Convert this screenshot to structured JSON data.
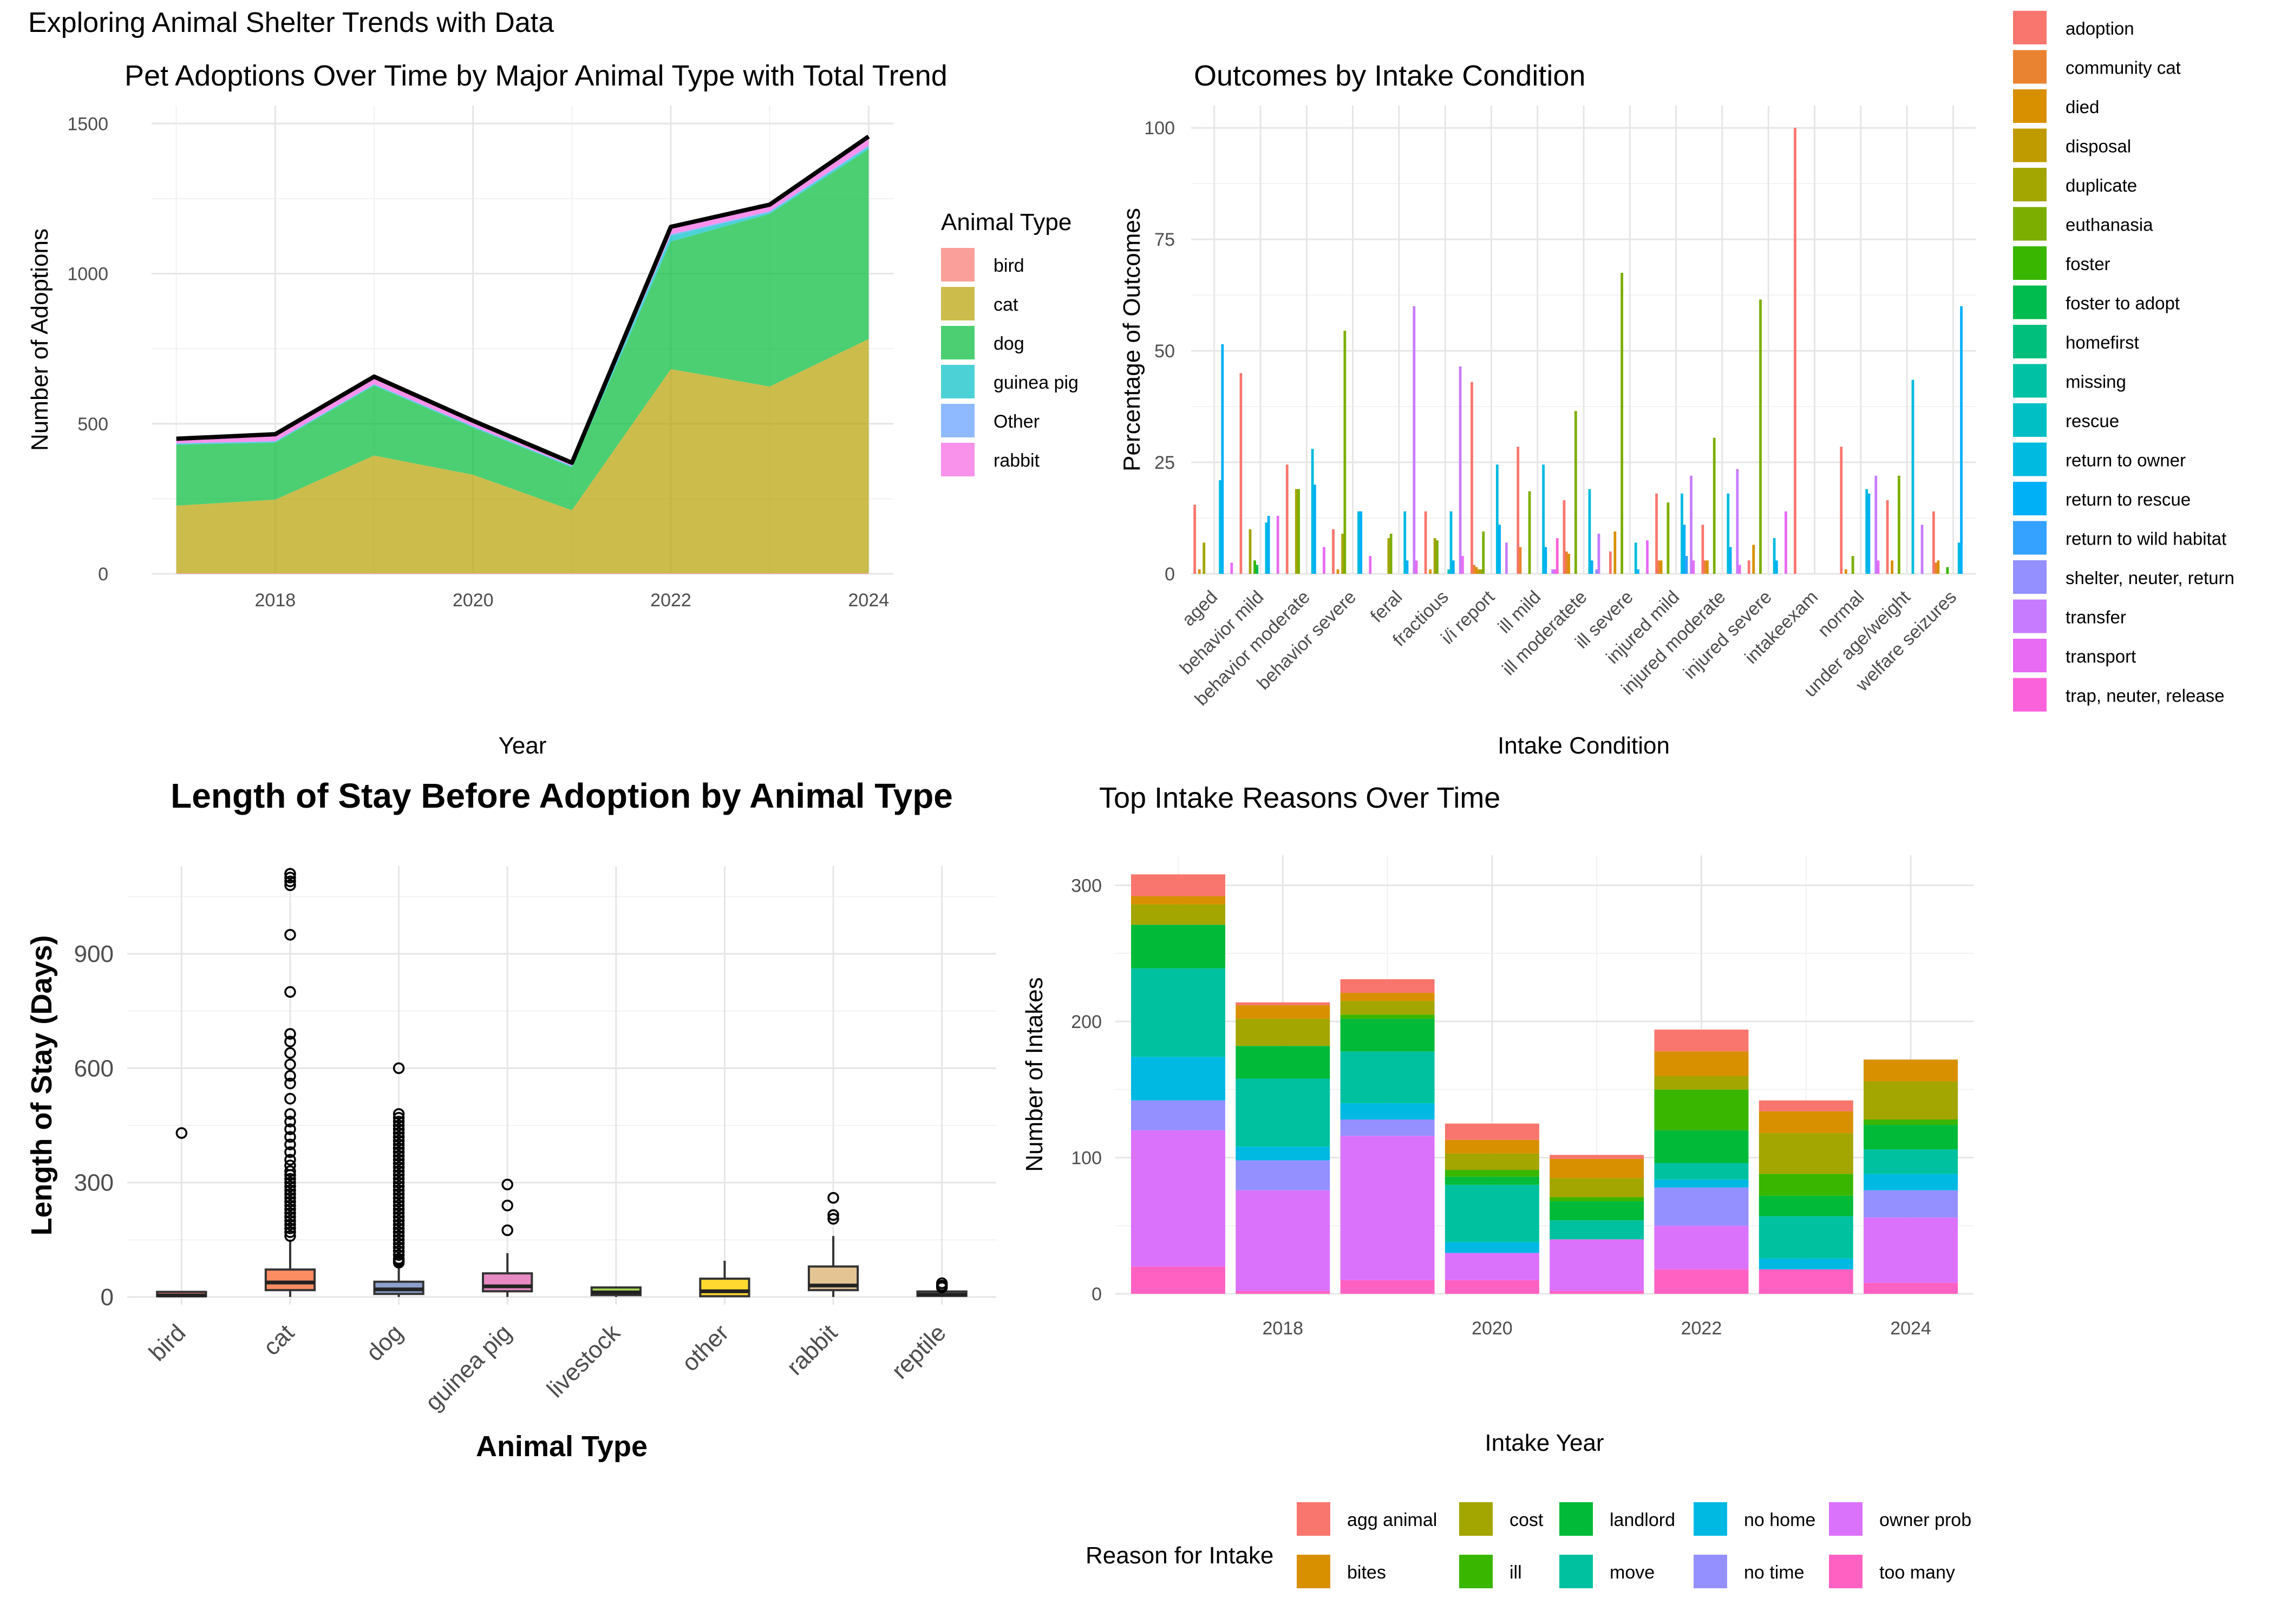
{
  "figure_title": "Exploring Animal Shelter Trends with Data",
  "chart_data": [
    {
      "type": "area",
      "title": "Pet Adoptions Over Time by Major Animal Type with Total Trend",
      "xlabel": "Year",
      "ylabel": "Number of Adoptions",
      "legend_title": "Animal Type",
      "legend_position": "right",
      "grid": true,
      "x": [
        2017,
        2018,
        2019,
        2020,
        2021,
        2022,
        2023,
        2024
      ],
      "xticks": [
        2018,
        2020,
        2022,
        2024
      ],
      "ylim": [
        0,
        1560
      ],
      "yticks": [
        0,
        500,
        1000,
        1500
      ],
      "series": [
        {
          "name": "bird",
          "color": "#F8766D",
          "values": [
            2,
            2,
            2,
            2,
            2,
            2,
            2,
            2
          ]
        },
        {
          "name": "cat",
          "color": "#B79F00",
          "values": [
            225,
            245,
            392,
            328,
            210,
            680,
            622,
            780
          ]
        },
        {
          "name": "dog",
          "color": "#00BA38",
          "values": [
            203,
            190,
            233,
            157,
            143,
            425,
            575,
            633
          ]
        },
        {
          "name": "guinea pig",
          "color": "#00BFC4",
          "values": [
            3,
            3,
            3,
            3,
            3,
            20,
            5,
            8
          ]
        },
        {
          "name": "Other",
          "color": "#619CFF",
          "values": [
            2,
            2,
            2,
            2,
            2,
            4,
            4,
            4
          ]
        },
        {
          "name": "rabbit",
          "color": "#F564E3",
          "values": [
            15,
            23,
            25,
            18,
            10,
            25,
            22,
            30
          ]
        }
      ],
      "total": [
        450,
        465,
        657,
        510,
        370,
        1156,
        1230,
        1457
      ]
    },
    {
      "type": "bar",
      "title": "Outcomes by Intake Condition",
      "xlabel": "Intake Condition",
      "ylabel": "Percentage of Outcomes",
      "legend_position": "right",
      "grid": true,
      "ylim": [
        0,
        105
      ],
      "yticks": [
        0,
        25,
        50,
        75,
        100
      ],
      "categories": [
        "aged",
        "behavior  mild",
        "behavior  moderate",
        "behavior  severe",
        "feral",
        "fractious",
        "i/i report",
        "ill mild",
        "ill moderatete",
        "ill severe",
        "injured  mild",
        "injured  moderate",
        "injured  severe",
        "intakeexam",
        "normal",
        "under age/weight",
        "welfare seizures"
      ],
      "series": [
        {
          "name": "adoption",
          "color": "#F8766D",
          "values": [
            15.5,
            45,
            24.5,
            10,
            0,
            14,
            43,
            28.5,
            16.5,
            5,
            18,
            11,
            3,
            100,
            28.5,
            16.5,
            14
          ]
        },
        {
          "name": "community cat",
          "color": "#EA8331",
          "values": [
            0,
            0,
            0,
            0,
            0,
            0,
            2,
            6,
            5,
            0,
            3,
            3,
            0,
            0,
            0,
            0,
            2.5
          ]
        },
        {
          "name": "died",
          "color": "#D89000",
          "values": [
            1,
            0,
            0,
            1,
            0,
            1,
            1.5,
            0,
            4.5,
            9.5,
            3,
            3,
            6.5,
            0,
            1,
            3,
            3
          ]
        },
        {
          "name": "disposal",
          "color": "#C09B00",
          "values": [
            0,
            0,
            0,
            0,
            0,
            0,
            1,
            0,
            0,
            0,
            0,
            0,
            0,
            0,
            0,
            0,
            0
          ]
        },
        {
          "name": "duplicate",
          "color": "#A3A500",
          "values": [
            7,
            10,
            19,
            9,
            8,
            8,
            1,
            0,
            0,
            0,
            0,
            0,
            0,
            0,
            0,
            0,
            0
          ]
        },
        {
          "name": "euthanasia",
          "color": "#7CAE00",
          "values": [
            0,
            0,
            19,
            54.5,
            9,
            7.5,
            9.5,
            18.5,
            36.5,
            67.5,
            16,
            30.5,
            61.5,
            0,
            4,
            22,
            0
          ]
        },
        {
          "name": "foster",
          "color": "#39B600",
          "values": [
            0,
            3,
            0,
            0,
            0,
            0,
            0,
            0,
            0,
            0,
            0,
            0,
            0,
            0,
            0,
            0,
            1.5
          ]
        },
        {
          "name": "foster to adopt",
          "color": "#00BB4E",
          "values": [
            0,
            2,
            0,
            0,
            0,
            0,
            0,
            0,
            0,
            0,
            0,
            0,
            0,
            0,
            0,
            0,
            0
          ]
        },
        {
          "name": "homefirst",
          "color": "#00BF7D",
          "values": [
            0,
            0,
            0,
            0,
            0,
            0,
            0,
            0,
            0,
            0,
            0,
            0,
            0,
            0,
            0,
            0,
            0
          ]
        },
        {
          "name": "missing",
          "color": "#00C1A3",
          "values": [
            0,
            0,
            0,
            0,
            0,
            0,
            0,
            0,
            0,
            0,
            0,
            0,
            0,
            0,
            0,
            0,
            0
          ]
        },
        {
          "name": "rescue",
          "color": "#00BFC4",
          "values": [
            0,
            0,
            0,
            0,
            0,
            1,
            0,
            0,
            0,
            0,
            0,
            0,
            0,
            0,
            0,
            0,
            0
          ]
        },
        {
          "name": "return to owner",
          "color": "#00BAE0",
          "values": [
            21,
            11.5,
            28,
            14,
            14,
            14,
            24.5,
            24.5,
            19,
            7,
            18,
            18,
            8,
            0,
            19,
            43.5,
            7
          ]
        },
        {
          "name": "return to rescue",
          "color": "#00B0F6",
          "values": [
            51.5,
            13,
            20,
            14,
            3,
            3,
            11,
            6,
            3,
            1,
            11,
            6,
            3,
            0,
            18,
            0,
            60
          ]
        },
        {
          "name": "return to wild habitat",
          "color": "#35A2FF",
          "values": [
            0,
            0,
            0,
            0,
            0,
            0,
            0,
            0,
            0,
            0,
            4,
            0,
            0,
            0,
            0,
            0,
            0
          ]
        },
        {
          "name": "shelter, neuter, return",
          "color": "#9590FF",
          "values": [
            0,
            0,
            0,
            0,
            0,
            0,
            0,
            0,
            1,
            0,
            0,
            0,
            0,
            0,
            0,
            0,
            0
          ]
        },
        {
          "name": "transfer",
          "color": "#C77CFF",
          "values": [
            0,
            0,
            0,
            0,
            60,
            46.5,
            7,
            1,
            9,
            0,
            22,
            23.5,
            0,
            0,
            22,
            11,
            0
          ]
        },
        {
          "name": "transport",
          "color": "#E76BF3",
          "values": [
            2.5,
            13,
            6,
            4,
            3,
            4,
            0,
            1,
            0,
            7.5,
            3,
            2,
            14,
            0,
            3,
            0,
            0
          ]
        },
        {
          "name": "trap, neuter, release",
          "color": "#FA62DB",
          "values": [
            0,
            0,
            0,
            0,
            0,
            0,
            0,
            8,
            0,
            0,
            0,
            0,
            0,
            0,
            0,
            0,
            0
          ]
        }
      ]
    },
    {
      "type": "boxplot",
      "title": "Length of Stay Before Adoption by Animal Type",
      "xlabel": "Animal Type",
      "ylabel": "Length of Stay (Days)",
      "grid": true,
      "ylim": [
        -20,
        1130
      ],
      "yticks": [
        0,
        300,
        600,
        900
      ],
      "boxes": [
        {
          "name": "bird",
          "color": "#F8766D",
          "q1": 2,
          "median": 4,
          "q3": 7,
          "lower": 1,
          "upper": 12,
          "outliers": [
            430
          ]
        },
        {
          "name": "cat",
          "color": "#FC8D62",
          "q1": 18,
          "median": 38,
          "q3": 72,
          "lower": 0,
          "upper": 150,
          "outliers": [
            160,
            170,
            180,
            190,
            200,
            210,
            220,
            230,
            240,
            250,
            260,
            270,
            280,
            290,
            300,
            310,
            320,
            330,
            345,
            360,
            380,
            400,
            420,
            440,
            460,
            480,
            520,
            560,
            580,
            610,
            640,
            670,
            690,
            800,
            950,
            1080,
            1090,
            1100,
            1110
          ]
        },
        {
          "name": "dog",
          "color": "#8DA0CB",
          "q1": 8,
          "median": 20,
          "q3": 40,
          "lower": 0,
          "upper": 85,
          "outliers": [
            90,
            95,
            100,
            110,
            120,
            130,
            140,
            150,
            160,
            170,
            180,
            190,
            200,
            210,
            220,
            230,
            240,
            250,
            260,
            270,
            280,
            290,
            300,
            310,
            320,
            330,
            340,
            350,
            360,
            370,
            380,
            390,
            400,
            410,
            420,
            430,
            440,
            450,
            460,
            470,
            480,
            600
          ]
        },
        {
          "name": "guinea pig",
          "color": "#E78AC3",
          "q1": 15,
          "median": 28,
          "q3": 62,
          "lower": 0,
          "upper": 115,
          "outliers": [
            175,
            240,
            295
          ]
        },
        {
          "name": "livestock",
          "color": "#A6D854",
          "q1": 5,
          "median": 12,
          "q3": 25,
          "lower": 0,
          "upper": 28,
          "outliers": []
        },
        {
          "name": "other",
          "color": "#FFD92F",
          "q1": 2,
          "median": 15,
          "q3": 48,
          "lower": 0,
          "upper": 95,
          "outliers": []
        },
        {
          "name": "rabbit",
          "color": "#E5C494",
          "q1": 18,
          "median": 30,
          "q3": 80,
          "lower": 0,
          "upper": 160,
          "outliers": [
            205,
            215,
            260
          ]
        },
        {
          "name": "reptile",
          "color": "#B3B3B3",
          "q1": 3,
          "median": 6,
          "q3": 12,
          "lower": 0,
          "upper": 20,
          "outliers": [
            25,
            30,
            36
          ]
        }
      ]
    },
    {
      "type": "bar",
      "stacked": true,
      "title": "Top Intake Reasons Over Time",
      "xlabel": "Intake Year",
      "ylabel": "Number of Intakes",
      "legend_title": "Reason for Intake",
      "legend_position": "bottom",
      "grid": true,
      "categories": [
        2017,
        2018,
        2019,
        2020,
        2021,
        2022,
        2023,
        2024
      ],
      "xticks": [
        2018,
        2020,
        2022,
        2024
      ],
      "ylim": [
        0,
        322
      ],
      "yticks": [
        0,
        100,
        200,
        300
      ],
      "series": [
        {
          "name": "too many",
          "color": "#FF61C3",
          "values": [
            20,
            2,
            10,
            10,
            2,
            18,
            18,
            8
          ]
        },
        {
          "name": "owner prob",
          "color": "#DB72FB",
          "values": [
            100,
            74,
            106,
            20,
            38,
            32,
            0,
            48
          ]
        },
        {
          "name": "no time",
          "color": "#93AA00",
          "values": [
            0,
            0,
            0,
            0,
            0,
            0,
            0,
            0
          ]
        },
        {
          "name": "no time ",
          "color": "#9590FF",
          "values": [
            22,
            22,
            12,
            0,
            0,
            28,
            0,
            20
          ]
        },
        {
          "name": "no home",
          "color": "#00B9E3",
          "values": [
            32,
            10,
            12,
            8,
            0,
            6,
            8,
            12
          ]
        },
        {
          "name": "move",
          "color": "#00C19F",
          "values": [
            65,
            50,
            38,
            42,
            14,
            12,
            31,
            18
          ]
        },
        {
          "name": "landlord",
          "color": "#00BA38",
          "values": [
            32,
            24,
            24,
            6,
            14,
            24,
            15,
            18
          ]
        },
        {
          "name": "ill",
          "color": "#39B600",
          "values": [
            0,
            0,
            3,
            5,
            3,
            30,
            16,
            4
          ]
        },
        {
          "name": "cost",
          "color": "#A3A500",
          "values": [
            15,
            20,
            10,
            12,
            14,
            10,
            30,
            28
          ]
        },
        {
          "name": "bites",
          "color": "#D89000",
          "values": [
            6,
            10,
            6,
            10,
            14,
            18,
            16,
            16
          ]
        },
        {
          "name": "agg animal",
          "color": "#F8766D",
          "values": [
            16,
            2,
            10,
            12,
            3,
            16,
            8,
            0
          ]
        }
      ],
      "legend": [
        {
          "name": "agg animal",
          "color": "#F8766D"
        },
        {
          "name": "bites",
          "color": "#D89000"
        },
        {
          "name": "cost",
          "color": "#A3A500"
        },
        {
          "name": "ill",
          "color": "#39B600"
        },
        {
          "name": "landlord",
          "color": "#00BA38"
        },
        {
          "name": "move",
          "color": "#00C19F"
        },
        {
          "name": "no home",
          "color": "#00B9E3"
        },
        {
          "name": "no time",
          "color": "#9590FF"
        },
        {
          "name": "owner prob",
          "color": "#DB72FB"
        },
        {
          "name": "too many",
          "color": "#FF61C3"
        }
      ]
    }
  ]
}
